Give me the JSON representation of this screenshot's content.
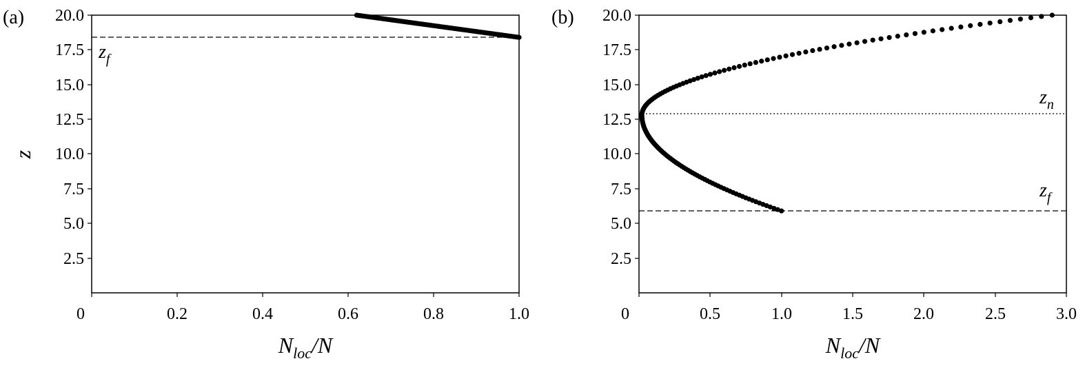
{
  "chart_data": [
    {
      "type": "scatter",
      "panel_label": "(a)",
      "xlabel": "N_loc/N",
      "ylabel": "z",
      "xlim": [
        0,
        1.0
      ],
      "ylim": [
        0,
        20.0
      ],
      "xticks": [
        "0",
        "0.2",
        "0.4",
        "0.6",
        "0.8",
        "1.0"
      ],
      "yticks": [
        "2.5",
        "5.0",
        "7.5",
        "10.0",
        "12.5",
        "15.0",
        "17.5",
        "20.0"
      ],
      "grid": false,
      "series": [
        {
          "x_start": 0.62,
          "x_end": 1.0,
          "z_start": 20.0,
          "z_end": 18.4,
          "points": 100
        }
      ],
      "hlines": [
        {
          "label": "f",
          "y": 18.4,
          "style": "dashed"
        }
      ]
    },
    {
      "type": "scatter",
      "panel_label": "(b)",
      "xlabel": "N_loc/N",
      "ylabel": "",
      "xlim": [
        0,
        3.0
      ],
      "ylim": [
        0,
        20.0
      ],
      "xticks": [
        "0",
        "0.5",
        "1.0",
        "1.5",
        "2.0",
        "2.5",
        "3.0"
      ],
      "yticks": [
        "2.5",
        "5.0",
        "7.5",
        "10.0",
        "12.5",
        "15.0",
        "17.5",
        "20.0"
      ],
      "grid": false,
      "series": [
        {
          "z_start": 5.9,
          "z_end": 20.0,
          "z_vertex": 12.8,
          "x_vertex": 0.02,
          "x_at_start": 1.0,
          "x_at_end": 2.9,
          "points": 150
        }
      ],
      "hlines": [
        {
          "label": "n",
          "y": 12.9,
          "style": "dotted"
        },
        {
          "label": "f",
          "y": 5.9,
          "style": "dashed"
        }
      ]
    }
  ]
}
